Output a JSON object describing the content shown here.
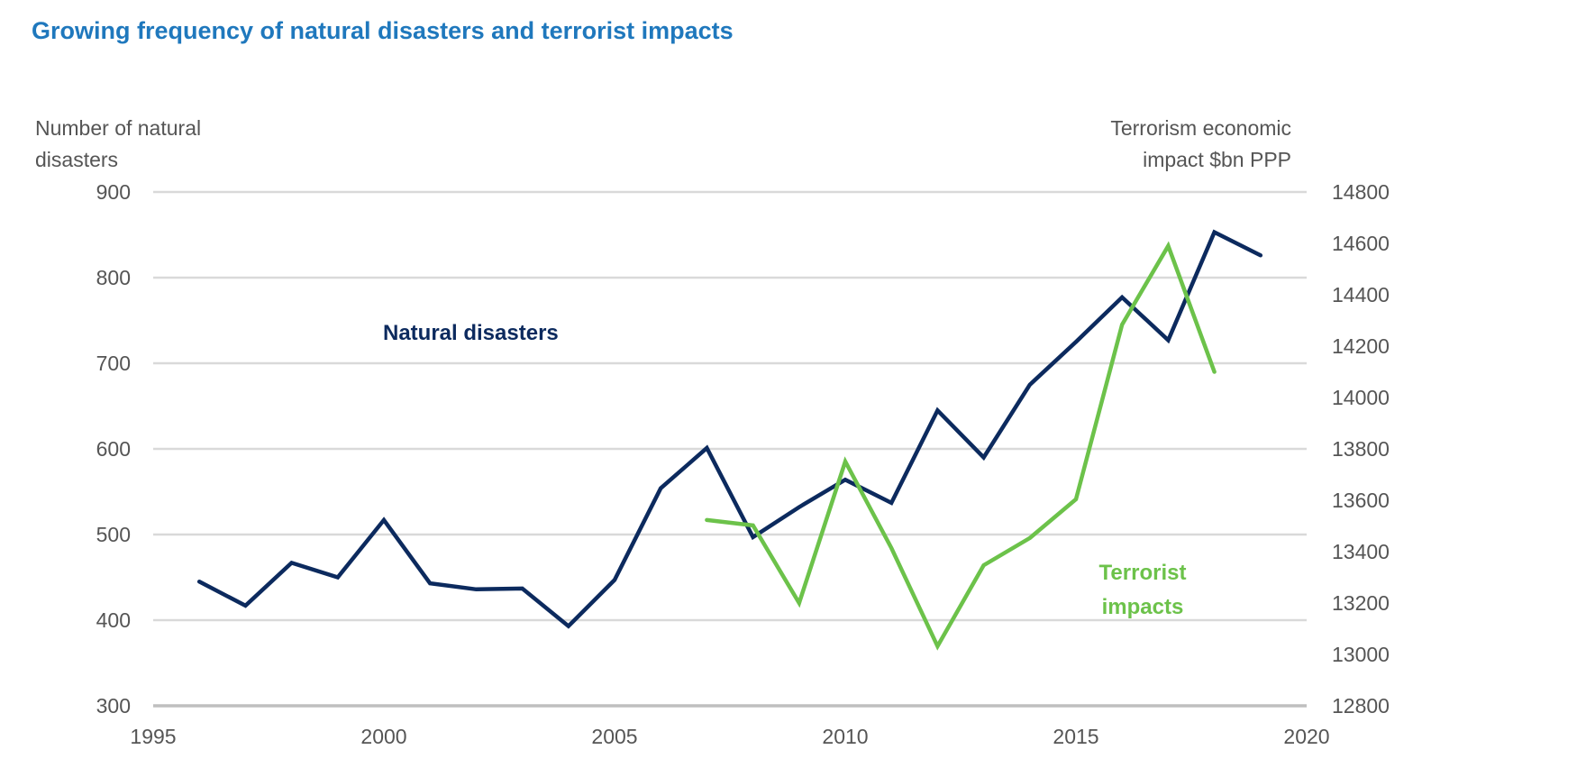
{
  "chart_data": {
    "type": "line",
    "title": "Growing frequency of natural disasters and terrorist impacts",
    "ylabel_left": [
      "Number of natural",
      "disasters"
    ],
    "ylabel_right": [
      "Terrorism economic",
      "impact $bn PPP"
    ],
    "xlabel": "",
    "xlim": [
      1995,
      2020
    ],
    "ylim_left": [
      300,
      900
    ],
    "ylim_right": [
      12800,
      14800
    ],
    "x_ticks": [
      "1995",
      "2000",
      "2005",
      "2010",
      "2015",
      "2020"
    ],
    "x_tick_values": [
      1995,
      2000,
      2005,
      2010,
      2015,
      2020
    ],
    "y_ticks_left": [
      "300",
      "400",
      "500",
      "600",
      "700",
      "800",
      "900"
    ],
    "y_tick_values_left": [
      300,
      400,
      500,
      600,
      700,
      800,
      900
    ],
    "y_ticks_right": [
      "12800",
      "13000",
      "13200",
      "13400",
      "13600",
      "13800",
      "14000",
      "14200",
      "14400",
      "14600",
      "14800"
    ],
    "y_tick_values_right": [
      12800,
      13000,
      13200,
      13400,
      13600,
      13800,
      14000,
      14200,
      14400,
      14600,
      14800
    ],
    "grid": true,
    "legend": "none (inline series labels)",
    "series": [
      {
        "name": "Natural disasters",
        "axis": "left",
        "color": "#0c2a5e",
        "label_lines": [
          "Natural disasters"
        ],
        "x": [
          1996,
          1997,
          1998,
          1999,
          2000,
          2001,
          2002,
          2003,
          2004,
          2005,
          2006,
          2007,
          2008,
          2009,
          2010,
          2011,
          2012,
          2013,
          2014,
          2015,
          2016,
          2017,
          2018,
          2019
        ],
        "values": [
          445,
          417,
          467,
          450,
          517,
          443,
          436,
          437,
          393,
          447,
          554,
          601,
          497,
          532,
          564,
          537,
          645,
          590,
          675,
          725,
          777,
          727,
          853,
          826
        ]
      },
      {
        "name": "Terrorist impacts",
        "axis": "right",
        "color": "#6cc24a",
        "label_lines": [
          "Terrorist",
          "impacts"
        ],
        "x": [
          2007,
          2008,
          2009,
          2010,
          2011,
          2012,
          2013,
          2014,
          2015,
          2016,
          2017,
          2018
        ],
        "values": [
          13523,
          13502,
          13200,
          13751,
          13414,
          13032,
          13347,
          13453,
          13604,
          14284,
          14590,
          14100
        ]
      }
    ]
  }
}
